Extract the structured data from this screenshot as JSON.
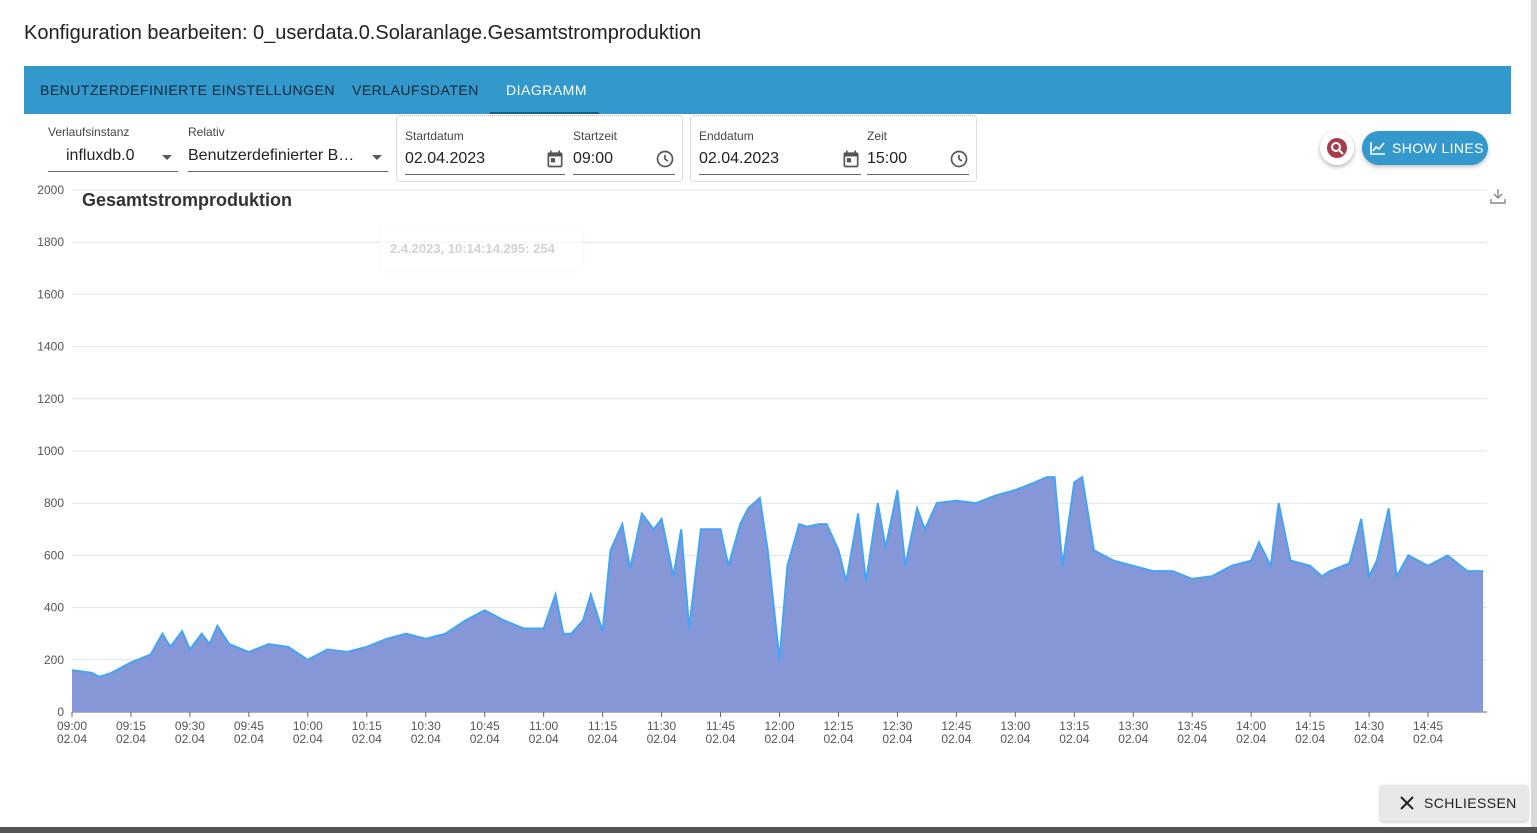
{
  "dialog": {
    "title": "Konfiguration bearbeiten: 0_userdata.0.Solaranlage.Gesamtstromproduktion"
  },
  "tabs": [
    {
      "label": "BENUTZERDEFINIERTE EINSTELLUNGEN"
    },
    {
      "label": "VERLAUFSDATEN"
    },
    {
      "label": "DIAGRAMM",
      "active": true
    }
  ],
  "controls": {
    "instance_label": "Verlaufsinstanz",
    "instance_value": "influxdb.0",
    "relative_label": "Relativ",
    "relative_value": "Benutzerdefinierter B…",
    "start_date_label": "Startdatum",
    "start_date_value": "02.04.2023",
    "start_time_label": "Startzeit",
    "start_time_value": "09:00",
    "end_date_label": "Enddatum",
    "end_date_value": "02.04.2023",
    "end_time_label": "Zeit",
    "end_time_value": "15:00",
    "show_lines_label": "SHOW LINES"
  },
  "tooltip": "2.4.2023, 10:14:14.295: 254",
  "footer": {
    "close_label": "SCHLIESSEN"
  },
  "colors": {
    "accent": "#3399cc",
    "area_fill": "#8597d6",
    "area_line": "#42a5f5",
    "fab_icon": "#a73c4c"
  },
  "icons": [
    "calendar-icon",
    "clock-icon",
    "chart-line-icon",
    "close-icon",
    "download-icon",
    "search-icon"
  ],
  "chart_data": {
    "type": "area",
    "title": "Gesamtstromproduktion",
    "xlabel": "",
    "ylabel": "",
    "ylim": [
      0,
      2000
    ],
    "yticks": [
      0,
      200,
      400,
      600,
      800,
      1000,
      1200,
      1400,
      1600,
      1800,
      2000
    ],
    "x_range": [
      "09:00",
      "15:00"
    ],
    "xticks": [
      {
        "time": "09:00",
        "date": "02.04"
      },
      {
        "time": "09:15",
        "date": "02.04"
      },
      {
        "time": "09:30",
        "date": "02.04"
      },
      {
        "time": "09:45",
        "date": "02.04"
      },
      {
        "time": "10:00",
        "date": "02.04"
      },
      {
        "time": "10:15",
        "date": "02.04"
      },
      {
        "time": "10:30",
        "date": "02.04"
      },
      {
        "time": "10:45",
        "date": "02.04"
      },
      {
        "time": "11:00",
        "date": "02.04"
      },
      {
        "time": "11:15",
        "date": "02.04"
      },
      {
        "time": "11:30",
        "date": "02.04"
      },
      {
        "time": "11:45",
        "date": "02.04"
      },
      {
        "time": "12:00",
        "date": "02.04"
      },
      {
        "time": "12:15",
        "date": "02.04"
      },
      {
        "time": "12:30",
        "date": "02.04"
      },
      {
        "time": "12:45",
        "date": "02.04"
      },
      {
        "time": "13:00",
        "date": "02.04"
      },
      {
        "time": "13:15",
        "date": "02.04"
      },
      {
        "time": "13:30",
        "date": "02.04"
      },
      {
        "time": "13:45",
        "date": "02.04"
      },
      {
        "time": "14:00",
        "date": "02.04"
      },
      {
        "time": "14:15",
        "date": "02.04"
      },
      {
        "time": "14:30",
        "date": "02.04"
      },
      {
        "time": "14:45",
        "date": "02.04"
      }
    ],
    "grid": true,
    "series": [
      {
        "x": [
          "09:00",
          "09:05",
          "09:07",
          "09:10",
          "09:15",
          "09:20",
          "09:23",
          "09:25",
          "09:28",
          "09:30",
          "09:33",
          "09:35",
          "09:37",
          "09:40",
          "09:45",
          "09:50",
          "09:55",
          "10:00",
          "10:05",
          "10:10",
          "10:15",
          "10:20",
          "10:25",
          "10:30",
          "10:35",
          "10:40",
          "10:45",
          "10:50",
          "10:55",
          "11:00",
          "11:03",
          "11:05",
          "11:07",
          "11:10",
          "11:12",
          "11:15",
          "11:17",
          "11:20",
          "11:22",
          "11:25",
          "11:28",
          "11:30",
          "11:33",
          "11:35",
          "11:37",
          "11:40",
          "11:45",
          "11:47",
          "11:50",
          "11:52",
          "11:55",
          "11:57",
          "12:00",
          "12:02",
          "12:05",
          "12:07",
          "12:10",
          "12:12",
          "12:15",
          "12:17",
          "12:20",
          "12:22",
          "12:25",
          "12:27",
          "12:30",
          "12:32",
          "12:35",
          "12:37",
          "12:40",
          "12:45",
          "12:50",
          "12:55",
          "13:00",
          "13:05",
          "13:08",
          "13:10",
          "13:12",
          "13:15",
          "13:17",
          "13:20",
          "13:25",
          "13:30",
          "13:35",
          "13:40",
          "13:45",
          "13:50",
          "13:55",
          "14:00",
          "14:02",
          "14:05",
          "14:07",
          "14:10",
          "14:15",
          "14:18",
          "14:20",
          "14:25",
          "14:28",
          "14:30",
          "14:32",
          "14:35",
          "14:37",
          "14:40",
          "14:45",
          "14:50",
          "14:55",
          "14:59"
        ],
        "values": [
          160,
          150,
          135,
          150,
          190,
          220,
          300,
          250,
          310,
          240,
          300,
          260,
          330,
          260,
          230,
          260,
          250,
          200,
          240,
          230,
          250,
          280,
          300,
          280,
          300,
          350,
          390,
          350,
          320,
          320,
          450,
          300,
          300,
          350,
          450,
          310,
          620,
          720,
          550,
          760,
          700,
          740,
          520,
          700,
          320,
          700,
          700,
          560,
          720,
          780,
          820,
          620,
          200,
          560,
          720,
          710,
          720,
          720,
          620,
          500,
          760,
          500,
          800,
          630,
          850,
          560,
          780,
          700,
          800,
          810,
          800,
          830,
          850,
          880,
          900,
          900,
          560,
          880,
          900,
          620,
          580,
          560,
          540,
          540,
          510,
          520,
          560,
          580,
          650,
          560,
          800,
          580,
          560,
          520,
          540,
          570,
          740,
          520,
          580,
          780,
          520,
          600,
          560,
          600,
          540,
          540
        ]
      }
    ]
  }
}
